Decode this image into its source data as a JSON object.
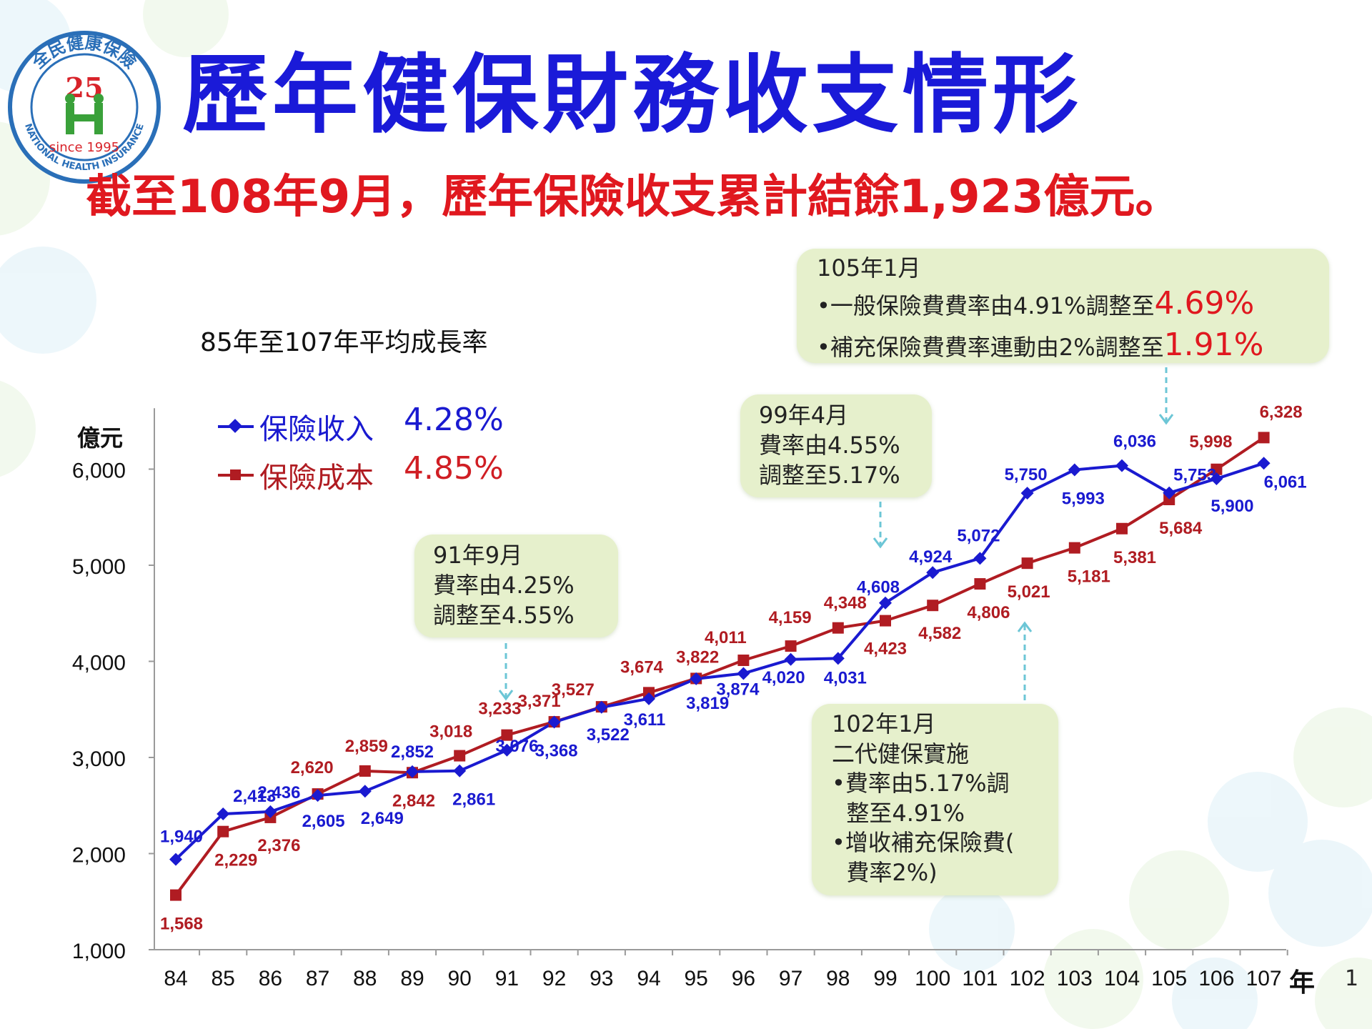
{
  "title": "歷年健保財務收支情形",
  "subtitle": "截至108年9月，歷年保險收支累計結餘1,923億元。",
  "logo": {
    "top_text": "全民健康保險",
    "number": "25",
    "since": "since 1995",
    "bottom_text": "NATIONAL HEALTH INSURANCE"
  },
  "growth_title": "85年至107年平均成長率",
  "colors": {
    "income": "#1a1ad0",
    "cost": "#b01c22",
    "accent_red": "#e0181f",
    "box_bg": "#e6f0cc"
  },
  "chart_data": {
    "type": "line",
    "unit_label": "億元",
    "x_label": "年",
    "categories": [
      "84",
      "85",
      "86",
      "87",
      "88",
      "89",
      "90",
      "91",
      "92",
      "93",
      "94",
      "95",
      "96",
      "97",
      "98",
      "99",
      "100",
      "101",
      "102",
      "103",
      "104",
      "105",
      "106",
      "107"
    ],
    "ylim": [
      1000,
      6500
    ],
    "yticks": [
      1000,
      2000,
      3000,
      4000,
      5000,
      6000
    ],
    "ytick_labels": [
      "1,000",
      "2,000",
      "3,000",
      "4,000",
      "5,000",
      "6,000"
    ],
    "series": [
      {
        "name": "保險收入",
        "rate": "4.28%",
        "marker": "diamond",
        "values": [
          1940,
          2413,
          2436,
          2605,
          2649,
          2852,
          2861,
          3076,
          3368,
          3522,
          3611,
          3819,
          3874,
          4020,
          4031,
          4608,
          4924,
          5072,
          5750,
          5993,
          6036,
          5753,
          5900,
          6061
        ],
        "labels": [
          "1,940",
          "2,413",
          "2,436",
          "2,605",
          "2,649",
          "2,852",
          "2,861",
          "3,076",
          "3,368",
          "3,522",
          "3,611",
          "3,819",
          "3,874",
          "4,020",
          "4,031",
          "4,608",
          "4,924",
          "5,072",
          "5,750",
          "5,993",
          "6,036",
          "5,753",
          "5,900",
          "6,061"
        ]
      },
      {
        "name": "保險成本",
        "rate": "4.85%",
        "marker": "square",
        "values": [
          1568,
          2229,
          2376,
          2620,
          2859,
          2842,
          3018,
          3233,
          3371,
          3527,
          3674,
          3822,
          4011,
          4159,
          4348,
          4423,
          4582,
          4806,
          5021,
          5181,
          5381,
          5684,
          5998,
          6328
        ],
        "labels": [
          "1,568",
          "2,229",
          "2,376",
          "2,620",
          "2,859",
          "2,842",
          "3,018",
          "3,233",
          "3,371",
          "3,527",
          "3,674",
          "3,822",
          "4,011",
          "4,159",
          "4,348",
          "4,423",
          "4,582",
          "4,806",
          "5,021",
          "5,181",
          "5,381",
          "5,684",
          "5,998",
          "6,328"
        ]
      }
    ]
  },
  "annotations": {
    "a91": {
      "lines": [
        "91年9月",
        "費率由4.25%",
        "調整至4.55%"
      ]
    },
    "a99": {
      "lines": [
        "99年4月",
        "費率由4.55%",
        "調整至5.17%"
      ]
    },
    "a102": {
      "lines": [
        "102年1月",
        "二代健保實施",
        "•費率由5.17%調",
        "  整至4.91%",
        "•增收補充保險費(",
        "  費率2%)"
      ]
    },
    "a105": {
      "head": "105年1月",
      "l1_text": "•一般保險費費率由4.91%調整至",
      "l1_value": "4.69%",
      "l2_text": "•補充保險費費率連動由2%調整至",
      "l2_value": "1.91%"
    }
  },
  "page_number": "1"
}
